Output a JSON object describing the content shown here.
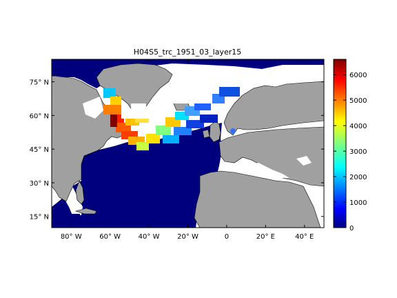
{
  "figure": {
    "title": "H04S5_trc_1951_03_layer15",
    "map": {
      "lon_range": [
        -90,
        50
      ],
      "lat_range": [
        10,
        85
      ],
      "x_ticks": [
        {
          "lon": -80,
          "label": "80",
          "hemi": "W"
        },
        {
          "lon": -60,
          "label": "60",
          "hemi": "W"
        },
        {
          "lon": -40,
          "label": "40",
          "hemi": "W"
        },
        {
          "lon": -20,
          "label": "20",
          "hemi": "W"
        },
        {
          "lon": 0,
          "label": "0",
          "hemi": ""
        },
        {
          "lon": 20,
          "label": "20",
          "hemi": "E"
        },
        {
          "lon": 40,
          "label": "40",
          "hemi": "E"
        }
      ],
      "y_ticks": [
        {
          "lat": 75,
          "label": "75",
          "hemi": "N"
        },
        {
          "lat": 60,
          "label": "60",
          "hemi": "N"
        },
        {
          "lat": 45,
          "label": "45",
          "hemi": "N"
        },
        {
          "lat": 30,
          "label": "30",
          "hemi": "N"
        },
        {
          "lat": 15,
          "label": "15",
          "hemi": "N"
        }
      ],
      "colors": {
        "ocean_low": "#00007f",
        "land": "#a0a0a0",
        "no_data": "#ffffff"
      }
    },
    "colorbar": {
      "min": 0,
      "max": 6600,
      "ticks": [
        0,
        1000,
        2000,
        3000,
        4000,
        5000,
        6000
      ],
      "colormap": "jet"
    }
  }
}
